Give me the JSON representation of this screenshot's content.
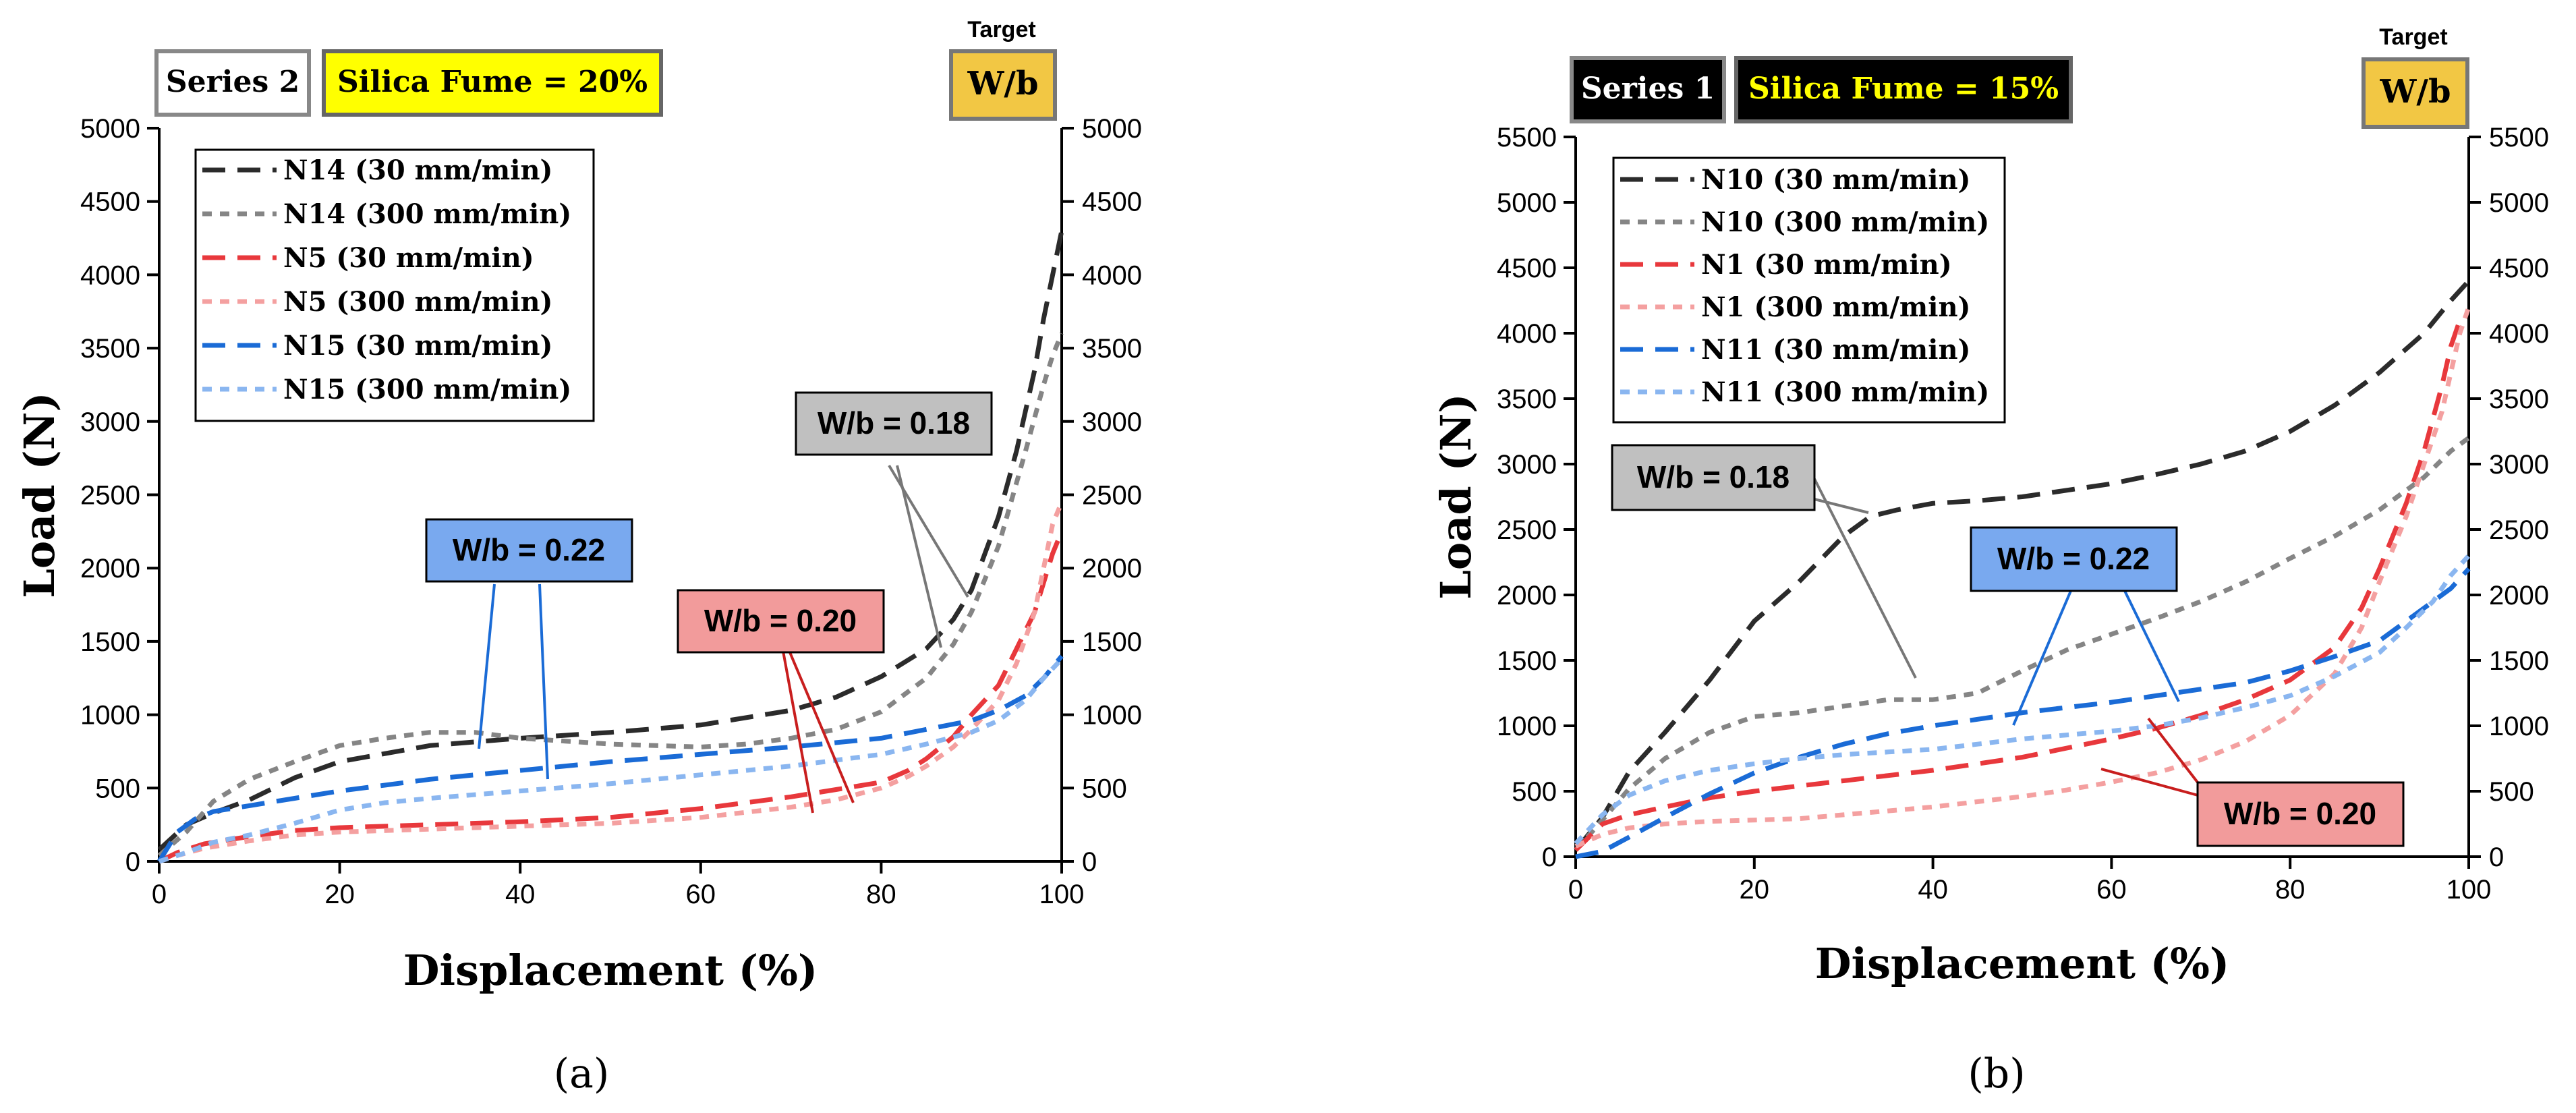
{
  "charts": [
    {
      "id": "a",
      "caption": "(a)",
      "series_tag": "Series 2",
      "series_tag_bg": "#ffffff",
      "series_tag_fg": "#000000",
      "silica_tag": "Silica Fume = 20%",
      "target_label": "Target",
      "target_box": "W/b",
      "xlabel": "Displacement (%)",
      "ylabel": "Load (N)",
      "xticks": [
        "0",
        "20",
        "40",
        "60",
        "80",
        "100"
      ],
      "yticks": [
        "0",
        "500",
        "1000",
        "1500",
        "2000",
        "2500",
        "3000",
        "3500",
        "4000",
        "4500",
        "5000"
      ],
      "callouts": [
        {
          "text": "W/b = 0.18",
          "bg": "#c0c0c0"
        },
        {
          "text": "W/b = 0.22",
          "bg": "#79a9ef"
        },
        {
          "text": "W/b = 0.20",
          "bg": "#f29b9b"
        }
      ]
    },
    {
      "id": "b",
      "caption": "(b)",
      "series_tag": "Series 1",
      "series_tag_bg": "#000000",
      "series_tag_fg": "#ffffff",
      "silica_tag": "Silica Fume = 15%",
      "target_label": "Target",
      "target_box": "W/b",
      "xlabel": "Displacement (%)",
      "ylabel": "Load (N)",
      "xticks": [
        "0",
        "20",
        "40",
        "60",
        "80",
        "100"
      ],
      "yticks": [
        "0",
        "500",
        "1000",
        "1500",
        "2000",
        "2500",
        "3000",
        "3500",
        "4000",
        "4500",
        "5000",
        "5500"
      ],
      "callouts": [
        {
          "text": "W/b = 0.18",
          "bg": "#c0c0c0"
        },
        {
          "text": "W/b = 0.22",
          "bg": "#79a9ef"
        },
        {
          "text": "W/b = 0.20",
          "bg": "#f29b9b"
        }
      ]
    }
  ],
  "colors": {
    "silica_bg": "#ffff00",
    "target_bg": "#f2c744",
    "dark_gray": "#2b2b2b",
    "mid_gray": "#858585",
    "red": "#e8383c",
    "pink": "#f4a0a0",
    "blue": "#1a6bd6",
    "light_blue": "#8ab6f0"
  },
  "chart_data": [
    {
      "type": "line",
      "title": "(a)",
      "xlabel": "Displacement (%)",
      "ylabel": "Load (N)",
      "xlim": [
        0,
        100
      ],
      "ylim": [
        0,
        5000
      ],
      "series": [
        {
          "name": "N14 (30 mm/min)",
          "style": "dash",
          "color": "#2b2b2b",
          "x": [
            0,
            3,
            6,
            10,
            15,
            20,
            30,
            40,
            50,
            60,
            70,
            75,
            80,
            85,
            88,
            90,
            93,
            95,
            97,
            98,
            99,
            100
          ],
          "y": [
            80,
            250,
            330,
            420,
            570,
            680,
            790,
            840,
            880,
            930,
            1030,
            1120,
            1260,
            1450,
            1650,
            1850,
            2350,
            2800,
            3350,
            3700,
            4000,
            4300
          ]
        },
        {
          "name": "N14 (300 mm/min)",
          "style": "dot",
          "color": "#858585",
          "x": [
            0,
            3,
            6,
            10,
            15,
            20,
            25,
            30,
            35,
            40,
            45,
            50,
            55,
            60,
            65,
            70,
            75,
            80,
            85,
            88,
            90,
            93,
            96,
            98,
            99,
            100
          ],
          "y": [
            40,
            200,
            410,
            560,
            680,
            790,
            840,
            880,
            880,
            840,
            820,
            800,
            790,
            780,
            800,
            840,
            900,
            1020,
            1250,
            1480,
            1700,
            2150,
            2800,
            3250,
            3450,
            3600
          ]
        },
        {
          "name": "N5 (30 mm/min)",
          "style": "dash",
          "color": "#e8383c",
          "x": [
            0,
            2,
            5,
            10,
            15,
            20,
            30,
            40,
            50,
            60,
            70,
            75,
            80,
            83,
            85,
            88,
            90,
            93,
            95,
            97,
            98,
            99,
            100
          ],
          "y": [
            0,
            60,
            120,
            170,
            210,
            230,
            250,
            270,
            300,
            360,
            440,
            490,
            540,
            620,
            700,
            850,
            1000,
            1200,
            1450,
            1700,
            1900,
            2100,
            2250
          ]
        },
        {
          "name": "N5 (300 mm/min)",
          "style": "dot",
          "color": "#f4a0a0",
          "x": [
            0,
            2,
            5,
            10,
            15,
            20,
            30,
            40,
            50,
            60,
            70,
            75,
            80,
            83,
            85,
            88,
            90,
            93,
            95,
            97,
            98,
            99,
            100
          ],
          "y": [
            0,
            40,
            90,
            140,
            180,
            200,
            220,
            240,
            260,
            300,
            370,
            420,
            500,
            580,
            650,
            780,
            900,
            1100,
            1350,
            1700,
            2000,
            2300,
            2450
          ]
        },
        {
          "name": "N15 (30 mm/min)",
          "style": "dash",
          "color": "#1a6bd6",
          "x": [
            0,
            2,
            4,
            6,
            10,
            15,
            20,
            25,
            30,
            35,
            40,
            50,
            60,
            70,
            80,
            85,
            90,
            93,
            96,
            98,
            100
          ],
          "y": [
            0,
            200,
            290,
            340,
            380,
            430,
            480,
            520,
            560,
            590,
            620,
            680,
            730,
            780,
            840,
            900,
            960,
            1030,
            1130,
            1250,
            1400
          ]
        },
        {
          "name": "N15 (300 mm/min)",
          "style": "dot",
          "color": "#8ab6f0",
          "x": [
            0,
            3,
            6,
            10,
            15,
            20,
            25,
            30,
            40,
            50,
            60,
            70,
            80,
            85,
            90,
            93,
            96,
            98,
            100
          ],
          "y": [
            0,
            60,
            130,
            180,
            260,
            350,
            400,
            430,
            480,
            530,
            590,
            650,
            730,
            800,
            880,
            960,
            1100,
            1250,
            1380
          ]
        }
      ]
    },
    {
      "type": "line",
      "title": "(b)",
      "xlabel": "Displacement (%)",
      "ylabel": "Load (N)",
      "xlim": [
        0,
        100
      ],
      "ylim": [
        0,
        5500
      ],
      "series": [
        {
          "name": "N10 (30 mm/min)",
          "style": "dash",
          "color": "#2b2b2b",
          "x": [
            0,
            3,
            6,
            10,
            15,
            20,
            25,
            30,
            33,
            36,
            40,
            45,
            50,
            55,
            60,
            65,
            70,
            75,
            80,
            85,
            90,
            95,
            98,
            100
          ],
          "y": [
            50,
            300,
            650,
            950,
            1350,
            1800,
            2100,
            2450,
            2600,
            2650,
            2700,
            2720,
            2750,
            2800,
            2850,
            2920,
            3000,
            3100,
            3250,
            3450,
            3700,
            4000,
            4250,
            4400
          ]
        },
        {
          "name": "N10 (300 mm/min)",
          "style": "dot",
          "color": "#858585",
          "x": [
            0,
            3,
            6,
            10,
            15,
            20,
            25,
            30,
            35,
            40,
            45,
            50,
            55,
            60,
            65,
            70,
            75,
            80,
            85,
            90,
            95,
            98,
            100
          ],
          "y": [
            50,
            280,
            520,
            750,
            950,
            1070,
            1100,
            1150,
            1200,
            1200,
            1250,
            1420,
            1580,
            1700,
            1820,
            1950,
            2100,
            2280,
            2450,
            2650,
            2900,
            3100,
            3200
          ]
        },
        {
          "name": "N1 (30 mm/min)",
          "style": "dash",
          "color": "#e8383c",
          "x": [
            0,
            3,
            6,
            10,
            15,
            20,
            25,
            30,
            35,
            40,
            45,
            50,
            55,
            60,
            65,
            70,
            75,
            80,
            85,
            88,
            90,
            93,
            95,
            97,
            98,
            99
          ],
          "y": [
            50,
            250,
            320,
            380,
            450,
            500,
            540,
            580,
            620,
            660,
            710,
            760,
            830,
            900,
            980,
            1080,
            1200,
            1350,
            1600,
            1900,
            2200,
            2700,
            3100,
            3600,
            3900,
            4100
          ]
        },
        {
          "name": "N1 (300 mm/min)",
          "style": "dot",
          "color": "#f4a0a0",
          "x": [
            0,
            3,
            6,
            10,
            15,
            20,
            25,
            30,
            35,
            40,
            45,
            50,
            55,
            60,
            65,
            70,
            75,
            80,
            85,
            88,
            90,
            93,
            95,
            97,
            98,
            99,
            100
          ],
          "y": [
            80,
            170,
            220,
            250,
            270,
            280,
            290,
            320,
            350,
            380,
            420,
            460,
            510,
            570,
            640,
            740,
            880,
            1080,
            1400,
            1750,
            2100,
            2600,
            3000,
            3400,
            3700,
            4000,
            4200
          ]
        },
        {
          "name": "N11 (30 mm/min)",
          "style": "dash",
          "color": "#1a6bd6",
          "x": [
            0,
            3,
            6,
            10,
            15,
            20,
            25,
            30,
            35,
            40,
            45,
            50,
            55,
            60,
            65,
            70,
            75,
            80,
            85,
            90,
            93,
            96,
            98,
            100
          ],
          "y": [
            0,
            40,
            150,
            300,
            480,
            640,
            760,
            860,
            940,
            1000,
            1050,
            1100,
            1140,
            1180,
            1230,
            1280,
            1330,
            1420,
            1530,
            1650,
            1800,
            1950,
            2050,
            2200
          ]
        },
        {
          "name": "N11 (300 mm/min)",
          "style": "dot",
          "color": "#8ab6f0",
          "x": [
            0,
            3,
            6,
            10,
            15,
            20,
            25,
            30,
            35,
            40,
            45,
            50,
            55,
            60,
            65,
            70,
            75,
            80,
            85,
            90,
            93,
            96,
            98,
            100
          ],
          "y": [
            100,
            320,
            470,
            580,
            660,
            710,
            750,
            780,
            800,
            820,
            860,
            900,
            930,
            960,
            1000,
            1060,
            1140,
            1230,
            1380,
            1560,
            1750,
            1950,
            2150,
            2300
          ]
        }
      ]
    }
  ]
}
